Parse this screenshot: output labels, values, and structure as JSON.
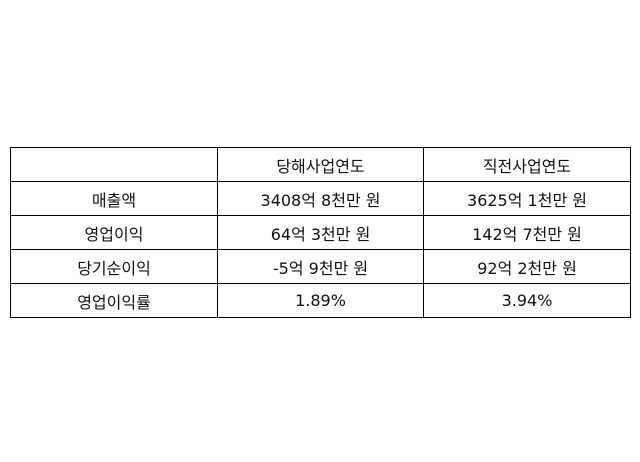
{
  "table": {
    "headers": [
      "",
      "당해사업연도",
      "직전사업연도"
    ],
    "rows": [
      [
        "매출액",
        "3408억 8천만 원",
        "3625억 1천만 원"
      ],
      [
        "영업이익",
        "64억 3천만 원",
        "142억 7천만 원"
      ],
      [
        "당기순이익",
        "-5억 9천만 원",
        "92억 2천만 원"
      ],
      [
        "영업이익률",
        "1.89%",
        "3.94%"
      ]
    ]
  }
}
